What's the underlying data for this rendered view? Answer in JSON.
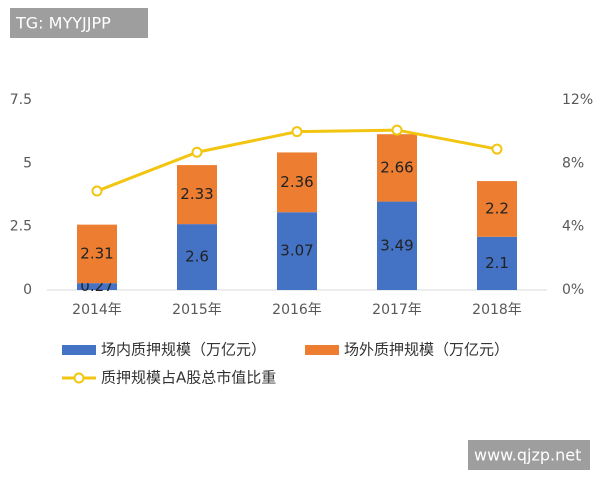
{
  "chart_data": {
    "type": "bar",
    "stacked": true,
    "categories": [
      "2014年",
      "2015年",
      "2016年",
      "2017年",
      "2018年"
    ],
    "series": [
      {
        "name": "场内质押规模（万亿元）",
        "color": "#4472c4",
        "values": [
          0.27,
          2.6,
          3.07,
          3.49,
          2.1
        ]
      },
      {
        "name": "场外质押规模（万亿元）",
        "color": "#ed7d31",
        "values": [
          2.31,
          2.33,
          2.36,
          2.66,
          2.2
        ]
      },
      {
        "name": "质押规模占A股总市值比重",
        "color": "#f2c511",
        "type": "line",
        "axis": "y2",
        "values": [
          6.25,
          8.7,
          10.0,
          10.1,
          8.9
        ]
      }
    ],
    "ylim": [
      0,
      7.5
    ],
    "yticks": [
      0,
      2.5,
      5,
      7.5
    ],
    "y2lim": [
      0,
      12
    ],
    "y2ticks": [
      {
        "value": 0,
        "label": "0%"
      },
      {
        "value": 4,
        "label": "4%"
      },
      {
        "value": 8,
        "label": "8%"
      },
      {
        "value": 12,
        "label": "12%"
      }
    ],
    "grid": false,
    "legend": "bottom"
  },
  "watermarks": {
    "top_left": "TG: MYYJJPP",
    "bottom_right": "www.qjzp.net"
  }
}
